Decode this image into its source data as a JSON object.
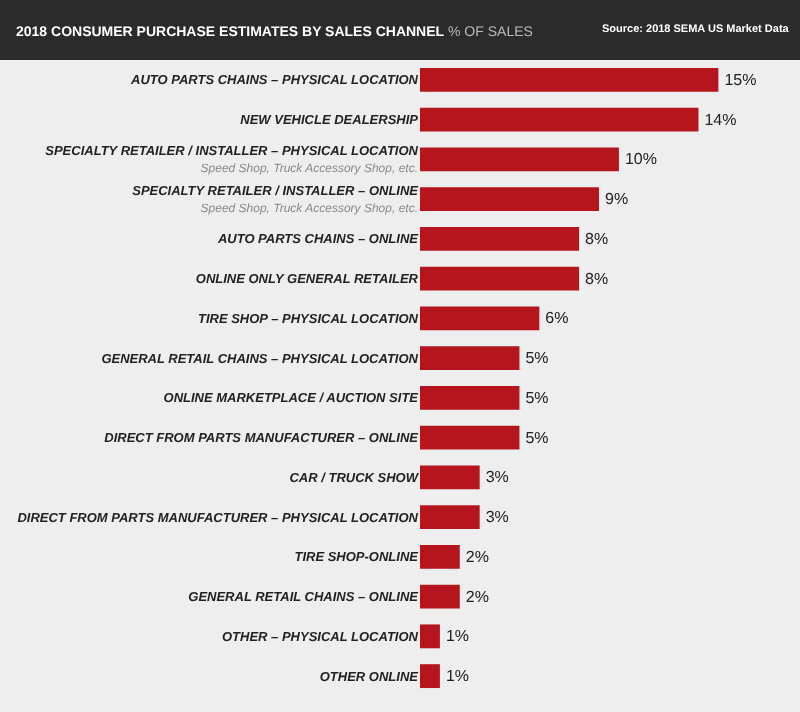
{
  "chart_data": {
    "type": "bar",
    "orientation": "horizontal",
    "title": "2018 CONSUMER PURCHASE ESTIMATES BY SALES CHANNEL",
    "subtitle": "% OF SALES",
    "annotations": [
      "Source: 2018 SEMA US Market Data"
    ],
    "categories": [
      "AUTO PARTS CHAINS – PHYSICAL LOCATION",
      "NEW VEHICLE DEALERSHIP",
      "SPECIALTY RETAILER / INSTALLER – PHYSICAL LOCATION\nSpeed Shop, Truck Accessory Shop, etc.",
      "SPECIALTY RETAILER / INSTALLER – ONLINE\nSpeed Shop, Truck Accessory Shop, etc.",
      "AUTO PARTS CHAINS – ONLINE",
      "ONLINE ONLY GENERAL RETAILER",
      "TIRE SHOP – PHYSICAL LOCATION",
      "GENERAL RETAIL CHAINS – PHYSICAL LOCATION",
      "ONLINE MARKETPLACE / AUCTION SITE",
      "DIRECT FROM PARTS MANUFACTURER – ONLINE",
      "CAR / TRUCK SHOW",
      "DIRECT FROM PARTS MANUFACTURER – PHYSICAL LOCATION",
      "TIRE SHOP-ONLINE",
      "GENERAL RETAIL CHAINS – ONLINE",
      "OTHER – PHYSICAL LOCATION",
      "OTHER ONLINE"
    ],
    "values": [
      15,
      14,
      10,
      9,
      8,
      8,
      6,
      5,
      5,
      5,
      3,
      3,
      2,
      2,
      1,
      1
    ],
    "value_labels": [
      "15%",
      "14%",
      "10%",
      "9%",
      "8%",
      "8%",
      "6%",
      "5%",
      "5%",
      "5%",
      "3%",
      "3%",
      "2%",
      "2%",
      "1%",
      "1%"
    ],
    "color": "#b5161e",
    "legend": false,
    "tick_labels": "y"
  }
}
